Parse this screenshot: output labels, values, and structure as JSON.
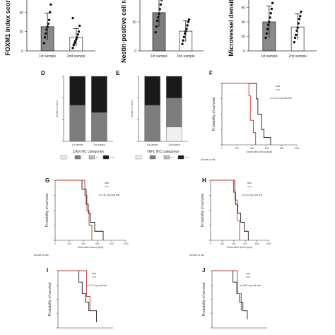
{
  "colors": {
    "bar_gray": "#8a8a8a",
    "dark": "#1a1a1a",
    "light": "#f0f0f0",
    "mid": "#7d7d7d",
    "red": "#c0392b",
    "axis": "#333333"
  },
  "chart_data": [
    {
      "type": "bar",
      "panel": "",
      "ylabel": "FOXM1 index score",
      "categories": [
        "1st sample",
        "2nd sample"
      ],
      "values": [
        25,
        14
      ],
      "errors": [
        14,
        9
      ],
      "points": [
        [
          8,
          14,
          18,
          22,
          25,
          28,
          32,
          40,
          48,
          58
        ],
        [
          3,
          6,
          8,
          10,
          12,
          14,
          17,
          20,
          26,
          34
        ]
      ],
      "ylim": [
        0,
        60
      ],
      "yticks": [
        "0",
        "20",
        "40"
      ],
      "colors": [
        "#8a8a8a",
        "#ffffff"
      ]
    },
    {
      "type": "bar",
      "panel": "",
      "ylabel": "Nestin-positive cell ratio",
      "categories": [
        "1st sample",
        "2nd sample"
      ],
      "values": [
        66,
        34
      ],
      "errors": [
        24,
        18
      ],
      "points": [
        [
          32,
          42,
          52,
          58,
          64,
          72,
          80,
          88,
          96
        ],
        [
          12,
          18,
          24,
          30,
          34,
          38,
          44,
          50,
          54
        ]
      ],
      "ylim": [
        0,
        100
      ],
      "yticks": [
        "0",
        "50"
      ],
      "colors": [
        "#7d7d7d",
        "#ffffff"
      ]
    },
    {
      "type": "bar",
      "panel": "",
      "ylabel": "Microvessel density",
      "categories": [
        "1st sample",
        "2nd sample"
      ],
      "values": [
        40,
        33
      ],
      "errors": [
        22,
        18
      ],
      "points": [
        [
          18,
          24,
          30,
          36,
          40,
          46,
          52,
          58,
          66
        ],
        [
          12,
          18,
          22,
          28,
          32,
          38,
          44,
          48,
          54
        ]
      ],
      "ylim": [
        0,
        80
      ],
      "yticks": [
        "0",
        "20",
        "40",
        "60"
      ],
      "colors": [
        "#8a8a8a",
        "#ffffff"
      ]
    },
    {
      "type": "bar",
      "stacked": true,
      "panel": "D",
      "ylabel": "Number of cases",
      "xlabel": "CA9 IHC categories",
      "categories": [
        "1st sample",
        "2nd sample"
      ],
      "series": [
        {
          "name": "−",
          "values": [
            0,
            0
          ]
        },
        {
          "name": "+",
          "values": [
            5,
            4
          ]
        },
        {
          "name": "++",
          "values": [
            0,
            0
          ]
        },
        {
          "name": "+++",
          "values": [
            4,
            5
          ]
        }
      ],
      "ylim": [
        0,
        9
      ],
      "legend": [
        "−",
        "+",
        "++",
        "+++"
      ]
    },
    {
      "type": "bar",
      "stacked": true,
      "panel": "E",
      "ylabel": "Number of cases",
      "xlabel": "HIF1 IHC categories",
      "categories": [
        "1st sample",
        "2nd sample"
      ],
      "series": [
        {
          "name": "−",
          "values": [
            0,
            2
          ]
        },
        {
          "name": "+",
          "values": [
            5,
            4
          ]
        },
        {
          "name": "++",
          "values": [
            0,
            0
          ]
        },
        {
          "name": "+++",
          "values": [
            4,
            3
          ]
        }
      ],
      "ylim": [
        0,
        9
      ],
      "legend": [
        "−",
        "+",
        "++",
        "+++"
      ]
    },
    {
      "type": "line",
      "panel": "F",
      "ylabel": "Probability of survival",
      "xlabel": "Observation period (days)",
      "xticks": [
        "0",
        "200",
        "400",
        "600",
        "800",
        "1000"
      ],
      "pvalue": "p=0.014, log-rank test",
      "risk_label": "Number at risk",
      "series": [
        {
          "name": "",
          "color": "#1a1a1a",
          "x": [
            0,
            430,
            460,
            480,
            530,
            560,
            650
          ],
          "y": [
            1,
            1,
            0.75,
            0.5,
            0.25,
            0.12,
            0
          ]
        },
        {
          "name": "",
          "color": "#c0392b",
          "x": [
            0,
            330,
            360,
            380,
            420,
            450
          ],
          "y": [
            1,
            1,
            0.8,
            0.4,
            0.2,
            0
          ]
        }
      ],
      "xlim": [
        0,
        1000
      ],
      "ylim": [
        0,
        1
      ]
    },
    {
      "type": "line",
      "panel": "G",
      "ylabel": "Probability of survival",
      "xlabel": "Observation period (days)",
      "xticks": [
        "0",
        "200",
        "400",
        "600",
        "800",
        "1000"
      ],
      "pvalue": "p=0.36, log-rank test",
      "risk_label": "Number at risk",
      "series": [
        {
          "name": "",
          "color": "#1a1a1a",
          "x": [
            0,
            300,
            380,
            440,
            470,
            500,
            560,
            680
          ],
          "y": [
            1,
            1,
            0.85,
            0.6,
            0.45,
            0.3,
            0.15,
            0
          ]
        },
        {
          "name": "",
          "color": "#c0392b",
          "x": [
            0,
            330,
            420,
            450,
            480,
            520
          ],
          "y": [
            1,
            1,
            0.75,
            0.5,
            0.25,
            0
          ]
        }
      ],
      "xlim": [
        0,
        1000
      ],
      "ylim": [
        0,
        1
      ]
    },
    {
      "type": "line",
      "panel": "H",
      "ylabel": "Probability of survival",
      "xlabel": "Observation period (days)",
      "xticks": [
        "0",
        "200",
        "400",
        "600",
        "800",
        "1000"
      ],
      "pvalue": "p=0.43, log-rank test",
      "risk_label": "Number at risk",
      "series": [
        {
          "name": "",
          "color": "#1a1a1a",
          "x": [
            0,
            300,
            400,
            430,
            470,
            520,
            580,
            650
          ],
          "y": [
            1,
            1,
            0.8,
            0.6,
            0.45,
            0.3,
            0.15,
            0
          ]
        },
        {
          "name": "",
          "color": "#c0392b",
          "x": [
            0,
            380,
            420,
            460,
            500
          ],
          "y": [
            1,
            1,
            0.67,
            0.33,
            0
          ]
        }
      ],
      "xlim": [
        0,
        1000
      ],
      "ylim": [
        0,
        1
      ]
    },
    {
      "type": "line",
      "panel": "I",
      "ylabel": "Probability of survival",
      "xlabel": "",
      "xticks": [],
      "pvalue": "p=0.72, log-rank test",
      "risk_label": "",
      "series": [
        {
          "name": "",
          "color": "#1a1a1a",
          "x": [
            0,
            250,
            380,
            440,
            500,
            560,
            700
          ],
          "y": [
            1,
            1,
            0.8,
            0.6,
            0.45,
            0.3,
            0.1
          ]
        },
        {
          "name": "",
          "color": "#c0392b",
          "x": [
            0,
            450,
            520,
            580
          ],
          "y": [
            1,
            1,
            0.55,
            0.3
          ]
        }
      ],
      "xlim": [
        0,
        1000
      ],
      "ylim": [
        0,
        1
      ]
    },
    {
      "type": "line",
      "panel": "J",
      "ylabel": "Probability of survival",
      "xlabel": "",
      "xticks": [],
      "pvalue": "p=0.85, log-rank test",
      "risk_label": "",
      "series": [
        {
          "name": "",
          "color": "#1a1a1a",
          "x": [
            0,
            250,
            380,
            450,
            500,
            560,
            640
          ],
          "y": [
            1,
            1,
            0.8,
            0.6,
            0.45,
            0.3,
            0.15
          ]
        },
        {
          "name": "",
          "color": "#c0392b",
          "x": [
            0,
            400,
            460,
            530
          ],
          "y": [
            1,
            1,
            0.6,
            0.3
          ]
        }
      ],
      "xlim": [
        0,
        1000
      ],
      "ylim": [
        0,
        1
      ]
    }
  ]
}
